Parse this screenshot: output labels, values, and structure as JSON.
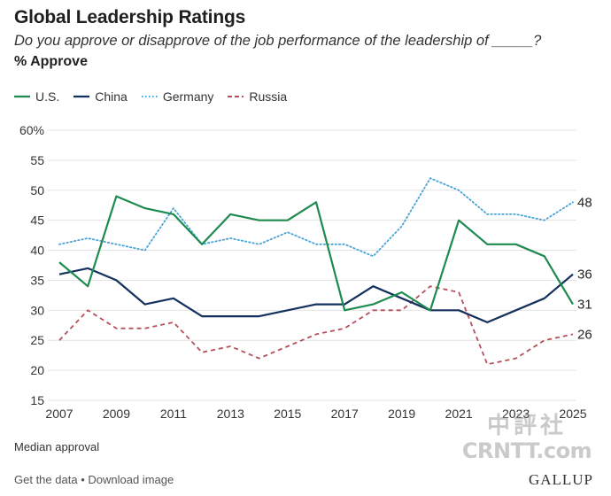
{
  "header": {
    "title": "Global Leadership Ratings",
    "subtitle": "Do you approve or disapprove of the job performance of the leadership of _____?",
    "units": "% Approve"
  },
  "colors": {
    "us": "#1d8a4f",
    "china": "#14305e",
    "germany": "#4aa3d6",
    "russia": "#b5505b",
    "grid": "#e3e3e3",
    "plot_bg": "#ffffff",
    "axis_text": "#333333"
  },
  "legend": [
    {
      "key": "us",
      "label": "U.S."
    },
    {
      "key": "china",
      "label": "China"
    },
    {
      "key": "germany",
      "label": "Germany"
    },
    {
      "key": "russia",
      "label": "Russia"
    }
  ],
  "chart_data": {
    "type": "line",
    "title": "Global Leadership Ratings",
    "ylabel": "% Approve",
    "xlabel": "",
    "ylim": [
      15,
      60
    ],
    "xlim": [
      2007,
      2025
    ],
    "y_ticks": [
      15,
      20,
      25,
      30,
      35,
      40,
      45,
      50,
      55,
      60
    ],
    "y_tick_labels": [
      "15",
      "20",
      "25",
      "30",
      "35",
      "40",
      "45",
      "50",
      "55",
      "60%"
    ],
    "x_ticks": [
      2007,
      2009,
      2011,
      2013,
      2015,
      2017,
      2019,
      2021,
      2023,
      2025
    ],
    "x_tick_labels": [
      "2007",
      "2009",
      "2011",
      "2013",
      "2015",
      "2017",
      "2019",
      "2021",
      "2023",
      "2025"
    ],
    "grid": "horizontal",
    "x": [
      2007,
      2008,
      2009,
      2010,
      2011,
      2012,
      2013,
      2014,
      2015,
      2016,
      2017,
      2018,
      2019,
      2020,
      2021,
      2022,
      2023,
      2024,
      2025
    ],
    "series": [
      {
        "key": "us",
        "name": "U.S.",
        "style": "solid",
        "end_label": "31",
        "values": [
          38,
          34,
          49,
          47,
          46,
          41,
          46,
          45,
          45,
          48,
          30,
          31,
          33,
          30,
          45,
          41,
          41,
          39,
          31
        ]
      },
      {
        "key": "china",
        "name": "China",
        "style": "solid",
        "end_label": "36",
        "values": [
          36,
          37,
          35,
          31,
          32,
          29,
          29,
          29,
          30,
          31,
          31,
          34,
          32,
          30,
          30,
          28,
          30,
          32,
          36
        ]
      },
      {
        "key": "germany",
        "name": "Germany",
        "style": "dotted",
        "end_label": "48",
        "values": [
          41,
          42,
          41,
          40,
          47,
          41,
          42,
          41,
          43,
          41,
          41,
          39,
          44,
          52,
          50,
          46,
          46,
          45,
          48
        ]
      },
      {
        "key": "russia",
        "name": "Russia",
        "style": "dashed",
        "end_label": "26",
        "values": [
          25,
          30,
          27,
          27,
          28,
          23,
          24,
          22,
          24,
          26,
          27,
          30,
          30,
          34,
          33,
          21,
          22,
          25,
          26
        ]
      }
    ]
  },
  "footnote": "Median approval",
  "footer": {
    "get_data": "Get the data",
    "separator": "•",
    "download": "Download image"
  },
  "watermark": {
    "cn": "中評社",
    "en": "CRNTT.com"
  },
  "brand": "GALLUP"
}
